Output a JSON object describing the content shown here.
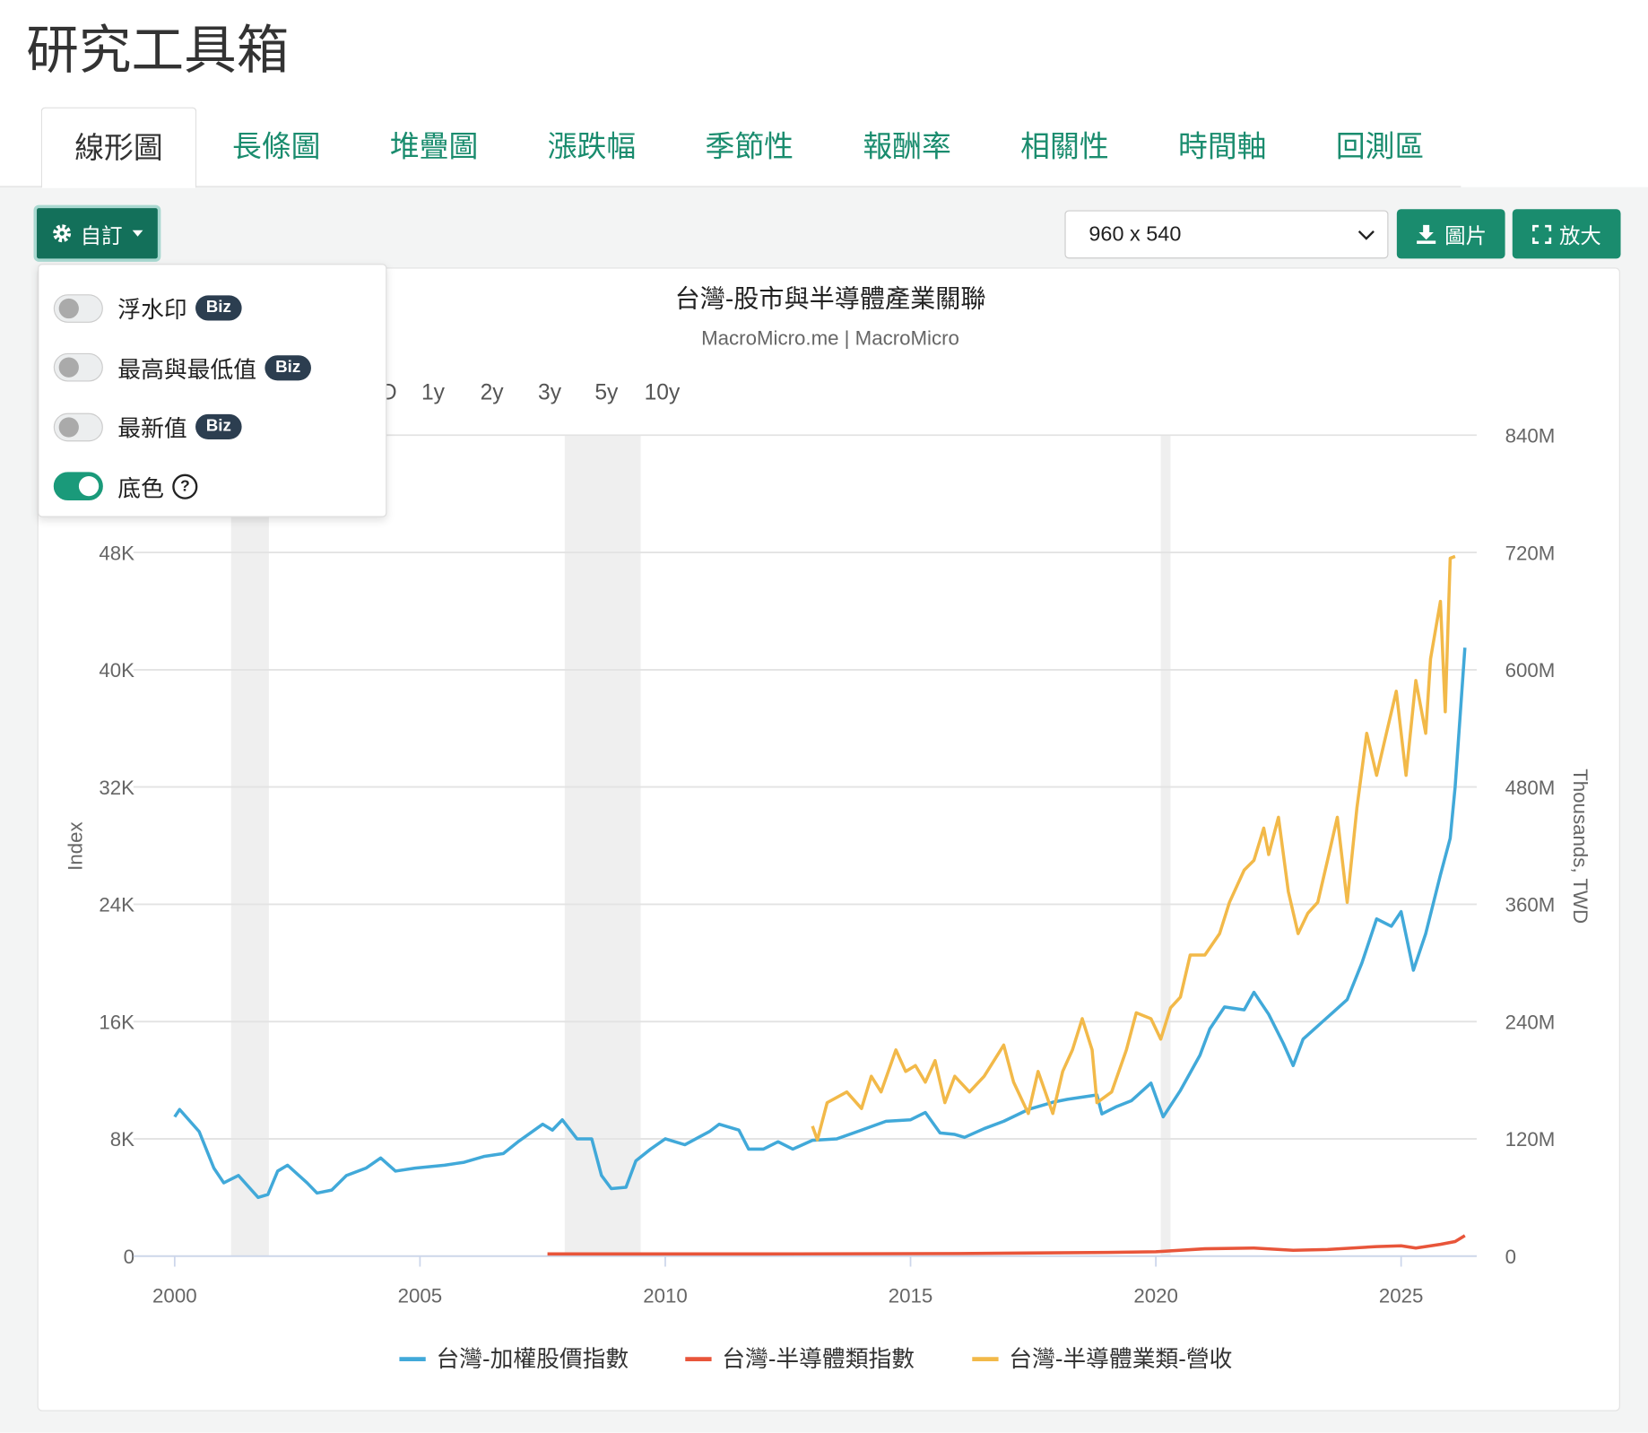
{
  "header": {
    "title": "研究工具箱"
  },
  "tabs": {
    "items": [
      "線形圖",
      "長條圖",
      "堆疊圖",
      "漲跌幅",
      "季節性",
      "報酬率",
      "相關性",
      "時間軸",
      "回測區"
    ],
    "active": 0
  },
  "toolbar": {
    "custom_button": "自訂",
    "size_select": "960 x 540",
    "image_button": "圖片",
    "zoom_button": "放大"
  },
  "menu": {
    "items": [
      {
        "label": "浮水印",
        "badge": "Biz",
        "on": false
      },
      {
        "label": "最高與最低值",
        "badge": "Biz",
        "on": false
      },
      {
        "label": "最新值",
        "badge": "Biz",
        "on": false
      },
      {
        "label": "底色",
        "on": true,
        "help": "?"
      }
    ]
  },
  "chart_data": {
    "type": "line",
    "title": "台灣-股市與半導體產業關聯",
    "subtitle": "MacroMicro.me | MacroMicro",
    "range_buttons": [
      "D",
      "1y",
      "2y",
      "3y",
      "5y",
      "10y"
    ],
    "y_label": "Index",
    "y2_label": "Thousands, TWD",
    "xlim": [
      1999.16,
      2026.54
    ],
    "xticks": [
      2000,
      2005,
      2010,
      2015,
      2020,
      2025
    ],
    "ylim": [
      0,
      56000
    ],
    "yticks": [
      0,
      {
        "value": 8000,
        "label": "8K"
      },
      {
        "value": 16000,
        "label": "16K"
      },
      {
        "value": 24000,
        "label": "24K"
      },
      {
        "value": 32000,
        "label": "32K"
      },
      {
        "value": 40000,
        "label": "40K"
      },
      {
        "value": 48000,
        "label": "48K"
      }
    ],
    "y2lim": [
      0,
      840000000
    ],
    "y2ticks": [
      0,
      {
        "value": 120000000,
        "label": "120M"
      },
      {
        "value": 240000000,
        "label": "240M"
      },
      {
        "value": 360000000,
        "label": "360M"
      },
      {
        "value": 480000000,
        "label": "480M"
      },
      {
        "value": 600000000,
        "label": "600M"
      },
      {
        "value": 720000000,
        "label": "720M"
      },
      {
        "value": 840000000,
        "label": "840M"
      }
    ],
    "grid": true,
    "recession_bands": [
      [
        2001.15,
        2001.92
      ],
      [
        2007.95,
        2009.5
      ],
      [
        2020.1,
        2020.3
      ]
    ],
    "series": [
      {
        "name": "台灣-加權股價指數",
        "color": "#41a9d9",
        "x": [
          2000.0,
          2000.1,
          2000.5,
          2000.8,
          2001.0,
          2001.3,
          2001.7,
          2001.9,
          2002.1,
          2002.3,
          2002.7,
          2002.9,
          2003.2,
          2003.5,
          2003.9,
          2004.2,
          2004.5,
          2004.9,
          2005.5,
          2005.9,
          2006.3,
          2006.7,
          2007.0,
          2007.5,
          2007.7,
          2007.9,
          2008.2,
          2008.5,
          2008.7,
          2008.9,
          2009.2,
          2009.4,
          2009.7,
          2010.0,
          2010.4,
          2010.9,
          2011.1,
          2011.5,
          2011.7,
          2012.0,
          2012.3,
          2012.6,
          2013.0,
          2013.5,
          2014.0,
          2014.5,
          2015.0,
          2015.3,
          2015.6,
          2015.9,
          2016.1,
          2016.5,
          2016.9,
          2017.4,
          2017.9,
          2018.2,
          2018.8,
          2018.9,
          2019.2,
          2019.5,
          2019.9,
          2020.15,
          2020.5,
          2020.9,
          2021.1,
          2021.4,
          2021.8,
          2022.0,
          2022.3,
          2022.6,
          2022.8,
          2023.0,
          2023.4,
          2023.6,
          2023.9,
          2024.2,
          2024.5,
          2024.8,
          2025.0,
          2025.25,
          2025.5,
          2025.8,
          2026.0,
          2026.1,
          2026.3
        ],
        "values": [
          9500,
          10000,
          8500,
          6000,
          5000,
          5500,
          4000,
          4200,
          5800,
          6200,
          5000,
          4300,
          4500,
          5500,
          6000,
          6700,
          5800,
          6000,
          6200,
          6400,
          6800,
          7000,
          7800,
          9000,
          8600,
          9300,
          8000,
          8000,
          5500,
          4600,
          4700,
          6500,
          7300,
          8000,
          7600,
          8500,
          9000,
          8600,
          7300,
          7300,
          7800,
          7300,
          7900,
          8000,
          8600,
          9200,
          9300,
          9800,
          8400,
          8300,
          8100,
          8700,
          9200,
          10000,
          10500,
          10700,
          11000,
          9700,
          10200,
          10600,
          11800,
          9500,
          11300,
          13700,
          15500,
          17000,
          16800,
          18000,
          16500,
          14500,
          13000,
          14800,
          16000,
          16600,
          17500,
          20000,
          23000,
          22500,
          23500,
          19500,
          22000,
          26000,
          28500,
          32000,
          41500
        ]
      },
      {
        "name": "台灣-半導體類指數",
        "color": "#e8553a",
        "x": [
          2007.6,
          2012.0,
          2016.0,
          2019.0,
          2020.0,
          2021.0,
          2022.0,
          2022.8,
          2023.5,
          2024.5,
          2025.0,
          2025.3,
          2025.8,
          2026.1,
          2026.3
        ],
        "values": [
          150,
          150,
          180,
          250,
          300,
          500,
          550,
          400,
          450,
          650,
          700,
          550,
          800,
          1000,
          1400
        ]
      },
      {
        "name": "台灣-半導體業類-營收",
        "color": "#f2b949",
        "axis": "y2",
        "x": [
          2013.0,
          2013.1,
          2013.3,
          2013.7,
          2014.0,
          2014.2,
          2014.4,
          2014.7,
          2014.9,
          2015.1,
          2015.3,
          2015.5,
          2015.7,
          2015.9,
          2016.2,
          2016.5,
          2016.9,
          2017.1,
          2017.4,
          2017.6,
          2017.9,
          2018.1,
          2018.3,
          2018.5,
          2018.7,
          2018.8,
          2019.1,
          2019.4,
          2019.6,
          2019.9,
          2020.1,
          2020.3,
          2020.5,
          2020.7,
          2021.0,
          2021.3,
          2021.5,
          2021.8,
          2022.0,
          2022.2,
          2022.3,
          2022.5,
          2022.7,
          2022.9,
          2023.1,
          2023.3,
          2023.5,
          2023.7,
          2023.9,
          2024.1,
          2024.3,
          2024.5,
          2024.7,
          2024.9,
          2025.1,
          2025.3,
          2025.5,
          2025.6,
          2025.8,
          2025.9,
          2026.0,
          2026.1
        ],
        "values": [
          133000000,
          119000000,
          157000000,
          168000000,
          151000000,
          184000000,
          168000000,
          211000000,
          189000000,
          195000000,
          178000000,
          200000000,
          157000000,
          184000000,
          168000000,
          184000000,
          216000000,
          178000000,
          146000000,
          189000000,
          146000000,
          189000000,
          211000000,
          243000000,
          211000000,
          157000000,
          168000000,
          211000000,
          249000000,
          243000000,
          222000000,
          254000000,
          265000000,
          308000000,
          308000000,
          330000000,
          362000000,
          395000000,
          405000000,
          438000000,
          411000000,
          449000000,
          373000000,
          330000000,
          351000000,
          362000000,
          405000000,
          449000000,
          362000000,
          459000000,
          535000000,
          492000000,
          535000000,
          578000000,
          492000000,
          589000000,
          535000000,
          611000000,
          670000000,
          557000000,
          714000000,
          716000000
        ]
      }
    ]
  }
}
